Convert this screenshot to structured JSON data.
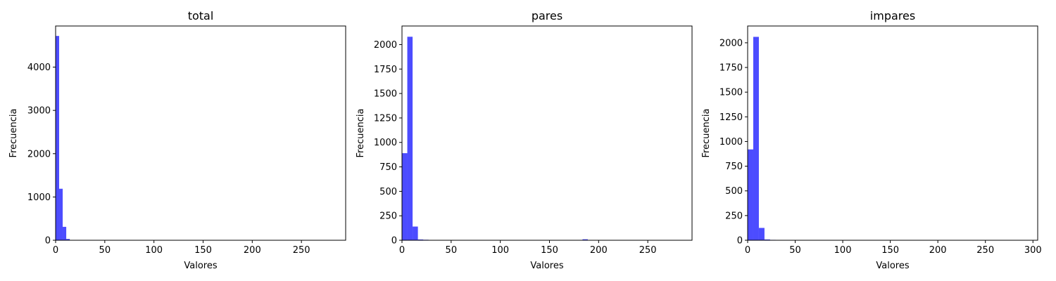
{
  "chart_data": [
    {
      "type": "bar",
      "title": "total",
      "xlabel": "Valores",
      "ylabel": "Frecuencia",
      "xlim": [
        0,
        295
      ],
      "ylim": [
        0,
        4950
      ],
      "xticks": [
        0,
        50,
        100,
        150,
        200,
        250
      ],
      "yticks": [
        0,
        1000,
        2000,
        3000,
        4000
      ],
      "bin_width": 3.6,
      "bins": [
        {
          "x0": 0,
          "x1": 3.6,
          "value": 4720
        },
        {
          "x0": 3.6,
          "x1": 7.2,
          "value": 1190
        },
        {
          "x0": 7.2,
          "x1": 10.8,
          "value": 310
        },
        {
          "x0": 10.8,
          "x1": 14.4,
          "value": 30
        },
        {
          "x0": 14.4,
          "x1": 18.0,
          "value": 5
        }
      ]
    },
    {
      "type": "bar",
      "title": "pares",
      "xlabel": "Valores",
      "ylabel": "Frecuencia",
      "xlim": [
        0,
        295
      ],
      "ylim": [
        0,
        2190
      ],
      "xticks": [
        0,
        50,
        100,
        150,
        200,
        250
      ],
      "yticks": [
        0,
        250,
        500,
        750,
        1000,
        1250,
        1500,
        1750,
        2000
      ],
      "bin_width": 5.4,
      "bins": [
        {
          "x0": 0,
          "x1": 5.4,
          "value": 890
        },
        {
          "x0": 5.4,
          "x1": 10.8,
          "value": 2080
        },
        {
          "x0": 10.8,
          "x1": 16.2,
          "value": 140
        },
        {
          "x0": 16.2,
          "x1": 21.6,
          "value": 8
        },
        {
          "x0": 21.6,
          "x1": 27.0,
          "value": 5
        },
        {
          "x0": 183.6,
          "x1": 189.0,
          "value": 10
        }
      ]
    },
    {
      "type": "bar",
      "title": "impares",
      "xlabel": "Valores",
      "ylabel": "Frecuencia",
      "xlim": [
        0,
        305
      ],
      "ylim": [
        0,
        2170
      ],
      "xticks": [
        0,
        50,
        100,
        150,
        200,
        250,
        300
      ],
      "yticks": [
        0,
        250,
        500,
        750,
        1000,
        1250,
        1500,
        1750,
        2000
      ],
      "bin_width": 5.9,
      "bins": [
        {
          "x0": 0,
          "x1": 5.9,
          "value": 920
        },
        {
          "x0": 5.9,
          "x1": 11.8,
          "value": 2060
        },
        {
          "x0": 11.8,
          "x1": 17.7,
          "value": 125
        },
        {
          "x0": 17.7,
          "x1": 23.6,
          "value": 8
        },
        {
          "x0": 23.6,
          "x1": 29.5,
          "value": 4
        }
      ]
    }
  ],
  "colors": {
    "bar_fill": "#0000ff",
    "bar_opacity": "0.7",
    "axes": "#000000"
  }
}
